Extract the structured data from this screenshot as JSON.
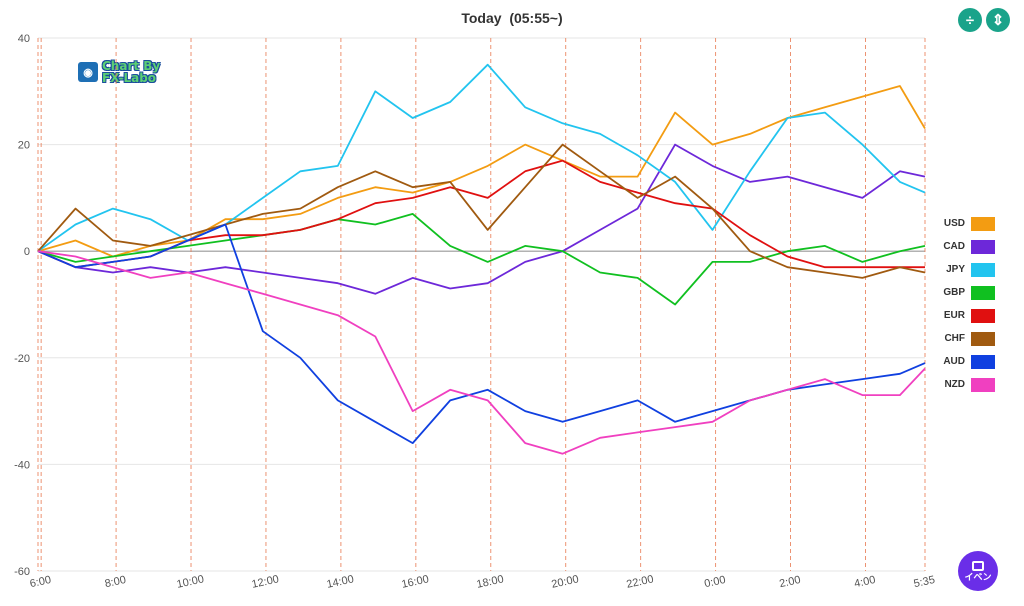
{
  "header": {
    "title": "Today  (05:55~)"
  },
  "watermark": {
    "line1": "Chart By",
    "line2": "FX-Labo"
  },
  "toolbar": {
    "expand_icon": "expand-vertical-icon",
    "fit_icon": "fit-height-icon"
  },
  "event_button": {
    "label": "イベン",
    "icon": "calendar-icon"
  },
  "chart_data": {
    "type": "line",
    "title": "Today  (05:55~)",
    "ylim": [
      -60,
      40
    ],
    "y_ticks": [
      40,
      20,
      0,
      -20,
      -40,
      -60
    ],
    "x_ticks": [
      "6:00",
      "8:00",
      "10:00",
      "12:00",
      "14:00",
      "16:00",
      "18:00",
      "20:00",
      "22:00",
      "0:00",
      "2:00",
      "4:00",
      "5:35"
    ],
    "grid": true,
    "legend_position": "right",
    "x_note": "x = hours elapsed since 05:55 (0 to 23.67)",
    "series": [
      {
        "name": "USD",
        "color": "#f39c12",
        "points": [
          [
            0,
            0
          ],
          [
            1,
            2
          ],
          [
            2,
            -1
          ],
          [
            3,
            1
          ],
          [
            4,
            2
          ],
          [
            5,
            6
          ],
          [
            6,
            6
          ],
          [
            7,
            7
          ],
          [
            8,
            10
          ],
          [
            9,
            12
          ],
          [
            10,
            11
          ],
          [
            11,
            13
          ],
          [
            12,
            16
          ],
          [
            13,
            20
          ],
          [
            14,
            17
          ],
          [
            15,
            14
          ],
          [
            16,
            14
          ],
          [
            17,
            26
          ],
          [
            18,
            20
          ],
          [
            19,
            22
          ],
          [
            20,
            25
          ],
          [
            21,
            27
          ],
          [
            22,
            29
          ],
          [
            23,
            31
          ],
          [
            23.67,
            23
          ]
        ]
      },
      {
        "name": "CAD",
        "color": "#6d28d9",
        "points": [
          [
            0,
            0
          ],
          [
            1,
            -3
          ],
          [
            2,
            -4
          ],
          [
            3,
            -3
          ],
          [
            4,
            -4
          ],
          [
            5,
            -3
          ],
          [
            6,
            -4
          ],
          [
            7,
            -5
          ],
          [
            8,
            -6
          ],
          [
            9,
            -8
          ],
          [
            10,
            -5
          ],
          [
            11,
            -7
          ],
          [
            12,
            -6
          ],
          [
            13,
            -2
          ],
          [
            14,
            0
          ],
          [
            15,
            4
          ],
          [
            16,
            8
          ],
          [
            17,
            20
          ],
          [
            18,
            16
          ],
          [
            19,
            13
          ],
          [
            20,
            14
          ],
          [
            21,
            12
          ],
          [
            22,
            10
          ],
          [
            23,
            15
          ],
          [
            23.67,
            14
          ]
        ]
      },
      {
        "name": "JPY",
        "color": "#22c4ef",
        "points": [
          [
            0,
            0
          ],
          [
            1,
            5
          ],
          [
            2,
            8
          ],
          [
            3,
            6
          ],
          [
            4,
            2
          ],
          [
            5,
            5
          ],
          [
            6,
            10
          ],
          [
            7,
            15
          ],
          [
            8,
            16
          ],
          [
            9,
            30
          ],
          [
            10,
            25
          ],
          [
            11,
            28
          ],
          [
            12,
            35
          ],
          [
            13,
            27
          ],
          [
            14,
            24
          ],
          [
            15,
            22
          ],
          [
            16,
            18
          ],
          [
            17,
            13
          ],
          [
            18,
            4
          ],
          [
            19,
            15
          ],
          [
            20,
            25
          ],
          [
            21,
            26
          ],
          [
            22,
            20
          ],
          [
            23,
            13
          ],
          [
            23.67,
            11
          ]
        ]
      },
      {
        "name": "GBP",
        "color": "#10c020",
        "points": [
          [
            0,
            0
          ],
          [
            1,
            -2
          ],
          [
            2,
            -1
          ],
          [
            3,
            0
          ],
          [
            4,
            1
          ],
          [
            5,
            2
          ],
          [
            6,
            3
          ],
          [
            7,
            4
          ],
          [
            8,
            6
          ],
          [
            9,
            5
          ],
          [
            10,
            7
          ],
          [
            11,
            1
          ],
          [
            12,
            -2
          ],
          [
            13,
            1
          ],
          [
            14,
            0
          ],
          [
            15,
            -4
          ],
          [
            16,
            -5
          ],
          [
            17,
            -10
          ],
          [
            18,
            -2
          ],
          [
            19,
            -2
          ],
          [
            20,
            0
          ],
          [
            21,
            1
          ],
          [
            22,
            -2
          ],
          [
            23,
            0
          ],
          [
            23.67,
            1
          ]
        ]
      },
      {
        "name": "EUR",
        "color": "#e01010",
        "points": [
          [
            0,
            0
          ],
          [
            1,
            -3
          ],
          [
            2,
            -2
          ],
          [
            3,
            -1
          ],
          [
            4,
            2
          ],
          [
            5,
            3
          ],
          [
            6,
            3
          ],
          [
            7,
            4
          ],
          [
            8,
            6
          ],
          [
            9,
            9
          ],
          [
            10,
            10
          ],
          [
            11,
            12
          ],
          [
            12,
            10
          ],
          [
            13,
            15
          ],
          [
            14,
            17
          ],
          [
            15,
            13
          ],
          [
            16,
            11
          ],
          [
            17,
            9
          ],
          [
            18,
            8
          ],
          [
            19,
            3
          ],
          [
            20,
            -1
          ],
          [
            21,
            -3
          ],
          [
            22,
            -3
          ],
          [
            23,
            -3
          ],
          [
            23.67,
            -3
          ]
        ]
      },
      {
        "name": "CHF",
        "color": "#a05a10",
        "points": [
          [
            0,
            0
          ],
          [
            1,
            8
          ],
          [
            2,
            2
          ],
          [
            3,
            1
          ],
          [
            4,
            3
          ],
          [
            5,
            5
          ],
          [
            6,
            7
          ],
          [
            7,
            8
          ],
          [
            8,
            12
          ],
          [
            9,
            15
          ],
          [
            10,
            12
          ],
          [
            11,
            13
          ],
          [
            12,
            4
          ],
          [
            13,
            12
          ],
          [
            14,
            20
          ],
          [
            15,
            15
          ],
          [
            16,
            10
          ],
          [
            17,
            14
          ],
          [
            18,
            8
          ],
          [
            19,
            0
          ],
          [
            20,
            -3
          ],
          [
            21,
            -4
          ],
          [
            22,
            -5
          ],
          [
            23,
            -3
          ],
          [
            23.67,
            -4
          ]
        ]
      },
      {
        "name": "AUD",
        "color": "#1040e0",
        "points": [
          [
            0,
            0
          ],
          [
            1,
            -3
          ],
          [
            2,
            -2
          ],
          [
            3,
            -1
          ],
          [
            4,
            2
          ],
          [
            5,
            5
          ],
          [
            6,
            -15
          ],
          [
            7,
            -20
          ],
          [
            8,
            -28
          ],
          [
            9,
            -32
          ],
          [
            10,
            -36
          ],
          [
            11,
            -28
          ],
          [
            12,
            -26
          ],
          [
            13,
            -30
          ],
          [
            14,
            -32
          ],
          [
            15,
            -30
          ],
          [
            16,
            -28
          ],
          [
            17,
            -32
          ],
          [
            18,
            -30
          ],
          [
            19,
            -28
          ],
          [
            20,
            -26
          ],
          [
            21,
            -25
          ],
          [
            22,
            -24
          ],
          [
            23,
            -23
          ],
          [
            23.67,
            -21
          ]
        ]
      },
      {
        "name": "NZD",
        "color": "#f040c0",
        "points": [
          [
            0,
            0
          ],
          [
            1,
            -1
          ],
          [
            2,
            -3
          ],
          [
            3,
            -5
          ],
          [
            4,
            -4
          ],
          [
            5,
            -6
          ],
          [
            6,
            -8
          ],
          [
            7,
            -10
          ],
          [
            8,
            -12
          ],
          [
            9,
            -16
          ],
          [
            10,
            -30
          ],
          [
            11,
            -26
          ],
          [
            12,
            -28
          ],
          [
            13,
            -36
          ],
          [
            14,
            -38
          ],
          [
            15,
            -35
          ],
          [
            16,
            -34
          ],
          [
            17,
            -33
          ],
          [
            18,
            -32
          ],
          [
            19,
            -28
          ],
          [
            20,
            -26
          ],
          [
            21,
            -24
          ],
          [
            22,
            -27
          ],
          [
            23,
            -27
          ],
          [
            23.67,
            -22
          ]
        ]
      }
    ]
  }
}
